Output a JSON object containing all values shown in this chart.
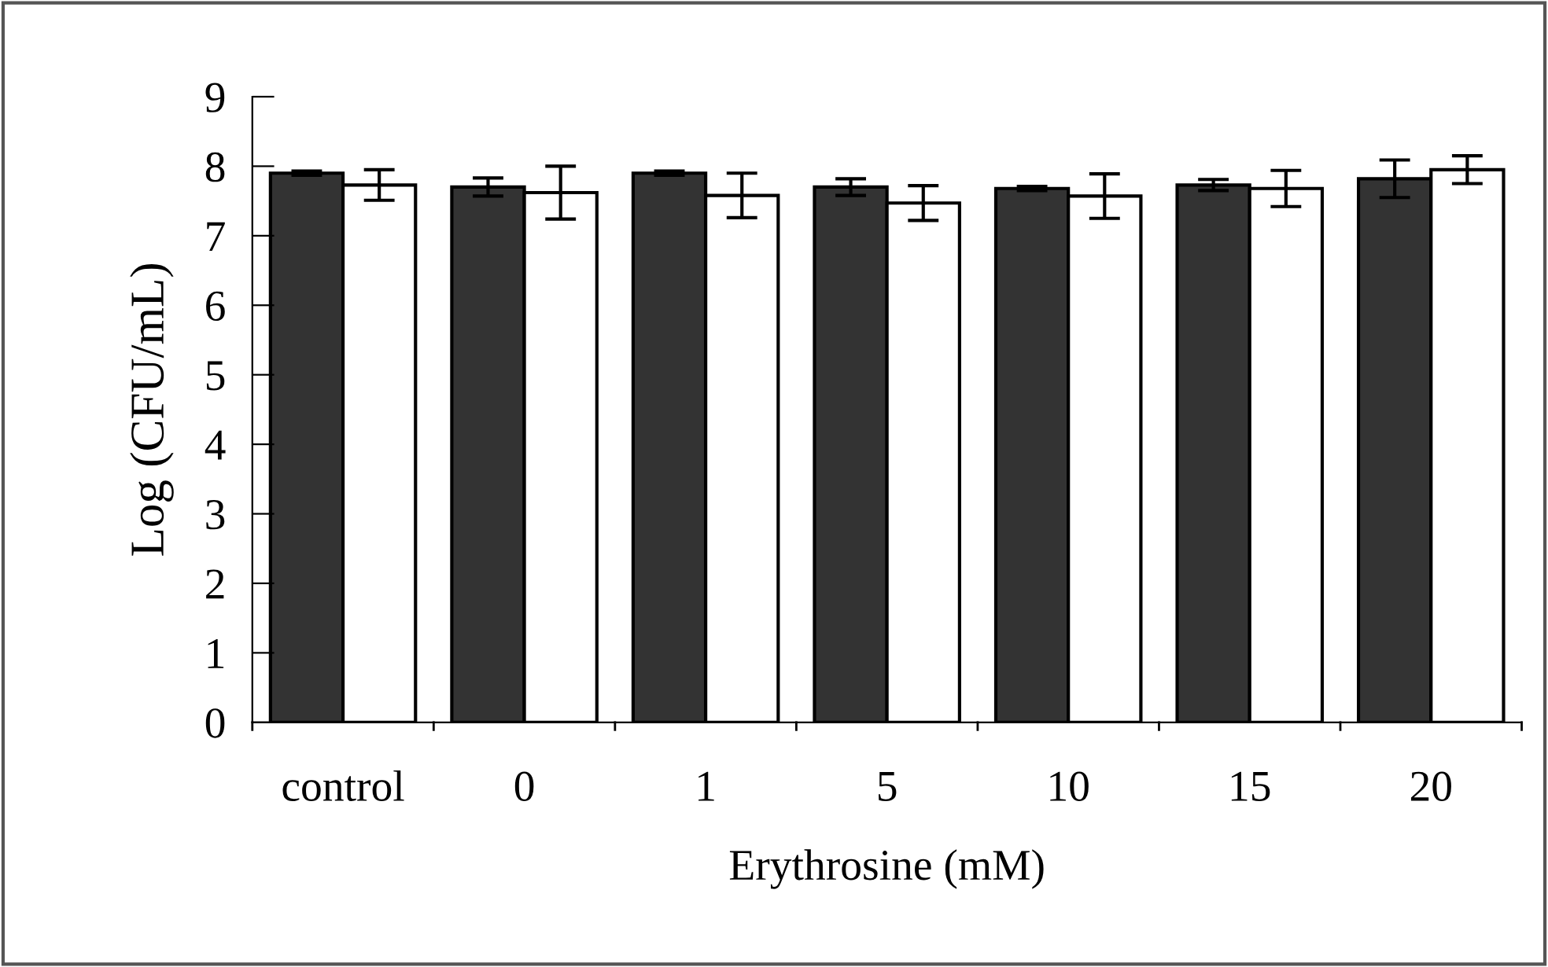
{
  "chart_data": {
    "type": "bar",
    "xlabel": "Erythrosine (mM)",
    "ylabel": "Log (CFU/mL)",
    "categories": [
      "control",
      "0",
      "1",
      "5",
      "10",
      "15",
      "20"
    ],
    "ylim": [
      0,
      9
    ],
    "yticks": [
      0,
      1,
      2,
      3,
      4,
      5,
      6,
      7,
      8,
      9
    ],
    "grid": false,
    "legend": false,
    "series": [
      {
        "color": "#333333",
        "values": [
          7.9,
          7.7,
          7.9,
          7.7,
          7.68,
          7.73,
          7.82
        ],
        "errors": [
          0.03,
          0.13,
          0.03,
          0.12,
          0.03,
          0.08,
          0.27
        ]
      },
      {
        "color": "#ffffff",
        "values": [
          7.73,
          7.62,
          7.58,
          7.47,
          7.57,
          7.68,
          7.95
        ],
        "errors": [
          0.22,
          0.38,
          0.32,
          0.25,
          0.32,
          0.26,
          0.2
        ]
      }
    ]
  }
}
